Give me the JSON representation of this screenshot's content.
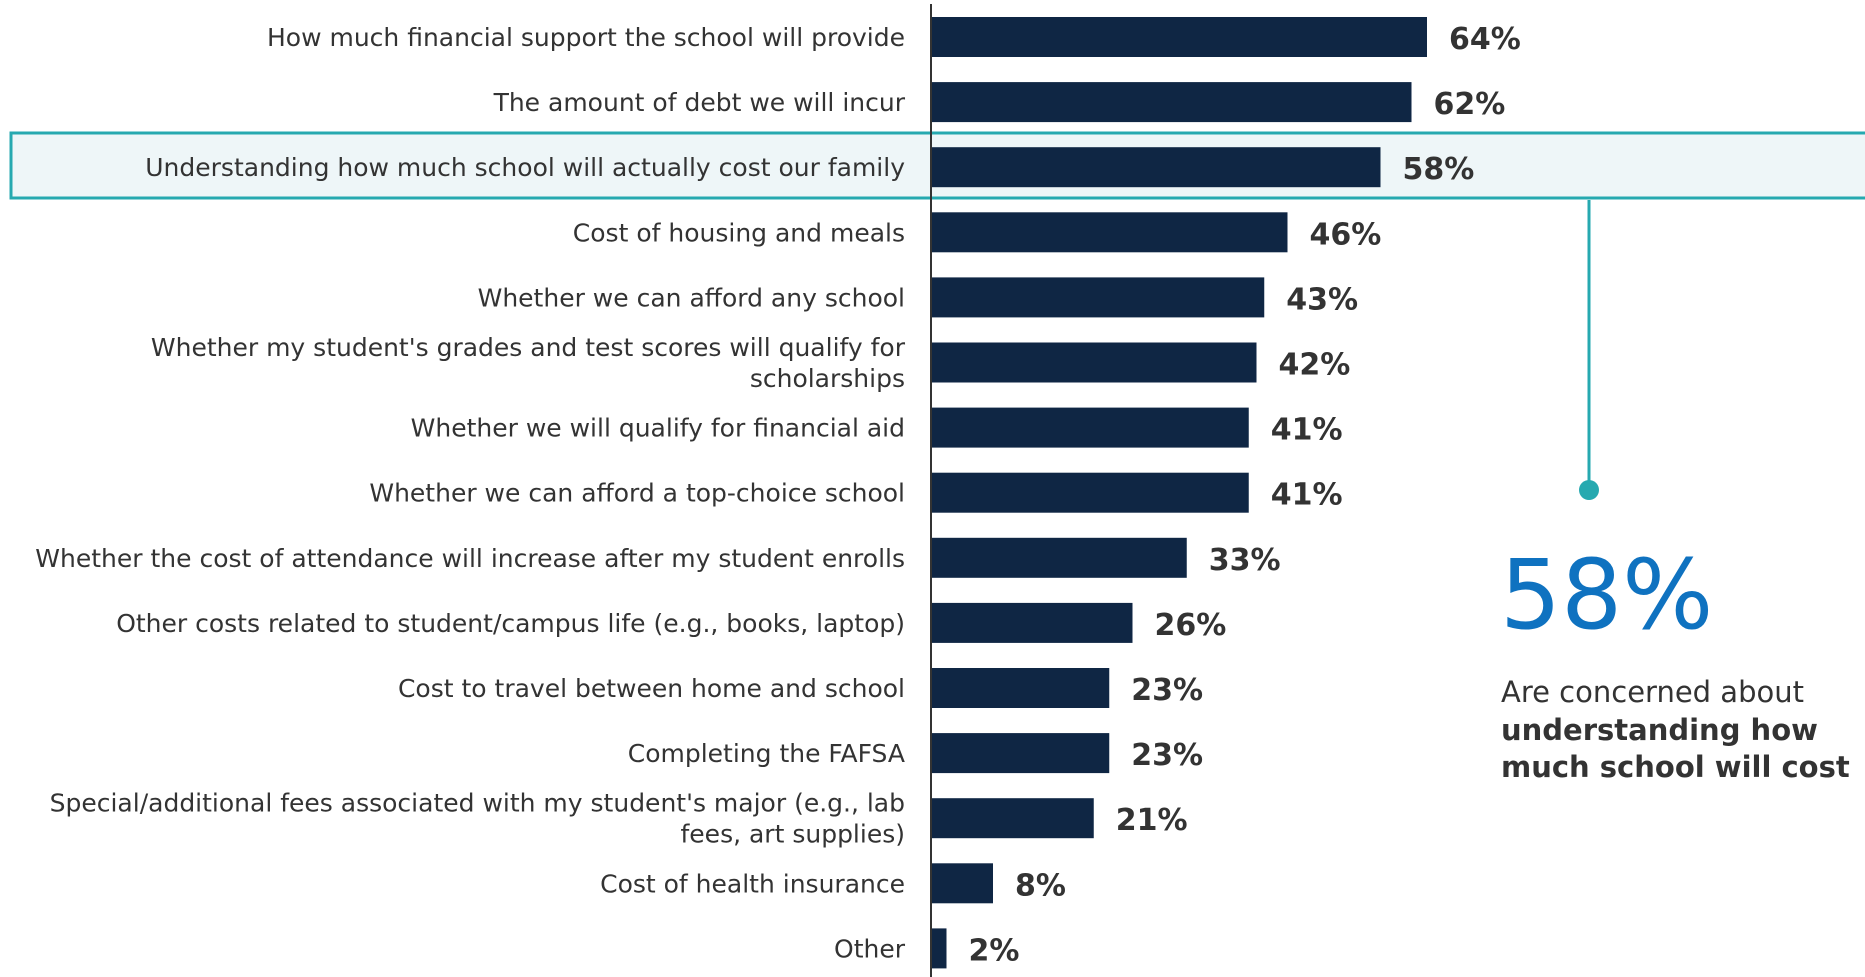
{
  "chart_data": {
    "type": "bar",
    "orientation": "horizontal",
    "categories": [
      "How much financial support the school will provide",
      "The amount of debt we will incur",
      "Understanding how much school will actually cost our family",
      "Cost of housing and meals",
      "Whether we can afford any school",
      "Whether my student's grades and test scores will qualify for scholarships",
      "Whether we will qualify for financial aid",
      "Whether we can afford a top-choice school",
      "Whether the cost of attendance will increase after my student enrolls",
      "Other costs related to student/campus life (e.g., books, laptop)",
      "Cost to travel between home and school",
      "Completing the FAFSA",
      "Special/additional fees associated with my student's major (e.g., lab fees, art supplies)",
      "Cost of health insurance",
      "Other"
    ],
    "category_lines": [
      [
        "How much financial support the school will provide"
      ],
      [
        "The amount of debt we will incur"
      ],
      [
        "Understanding how much school will actually cost our family"
      ],
      [
        "Cost of housing and meals"
      ],
      [
        "Whether we can afford any school"
      ],
      [
        "Whether my student's grades and test scores will qualify for",
        "scholarships"
      ],
      [
        "Whether we will qualify for financial aid"
      ],
      [
        "Whether we can afford a top-choice school"
      ],
      [
        "Whether the cost of attendance will increase after my student enrolls"
      ],
      [
        "Other costs related to student/campus life (e.g., books, laptop)"
      ],
      [
        "Cost to travel between home and school"
      ],
      [
        "Completing the FAFSA"
      ],
      [
        "Special/additional fees associated with my student's major (e.g., lab",
        "fees, art supplies)"
      ],
      [
        "Cost of health insurance"
      ],
      [
        "Other"
      ]
    ],
    "values": [
      64,
      62,
      58,
      46,
      43,
      42,
      41,
      41,
      33,
      26,
      23,
      23,
      21,
      8,
      2
    ],
    "value_labels": [
      "64%",
      "62%",
      "58%",
      "46%",
      "43%",
      "42%",
      "41%",
      "41%",
      "33%",
      "26%",
      "23%",
      "23%",
      "21%",
      "8%",
      "2%"
    ],
    "highlight_index": 2,
    "xlim": [
      0,
      100
    ],
    "grid": false,
    "title": "",
    "xlabel": "",
    "ylabel": ""
  },
  "callout": {
    "value": "58%",
    "line1": "Are concerned about",
    "line2": "understanding how",
    "line3": "much school will cost"
  },
  "colors": {
    "bar": "#0f2644",
    "highlight": "#26a9b0",
    "highlight_fill": "#eef6f8",
    "callout_value": "#0f72c0",
    "text": "#333333"
  }
}
